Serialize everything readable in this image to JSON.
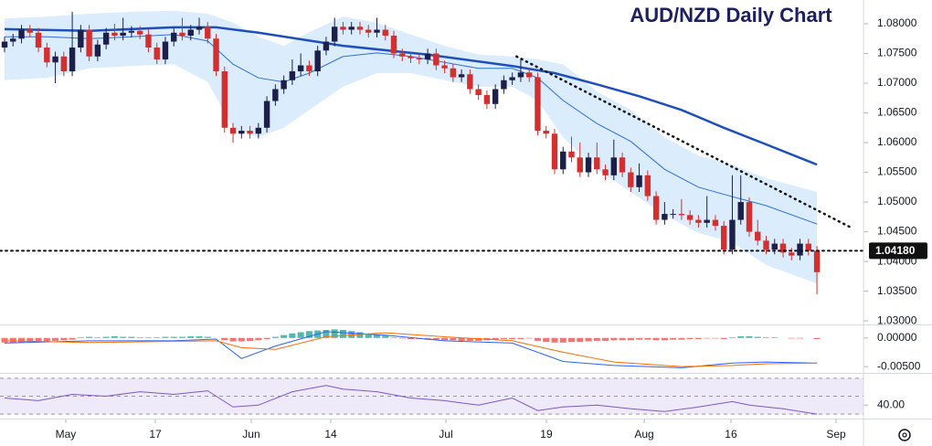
{
  "chart_data": [
    {
      "type": "candlestick",
      "title": "AUD/NZD Daily Chart",
      "open": [
        1.076,
        1.077,
        1.0775,
        1.079,
        1.0785,
        1.076,
        1.0735,
        1.0745,
        1.072,
        1.076,
        1.079,
        1.0745,
        1.0765,
        1.0785,
        1.078,
        1.0785,
        1.0788,
        1.0782,
        1.076,
        1.074,
        1.077,
        1.0785,
        1.078,
        1.079,
        1.0795,
        1.0775,
        1.072,
        1.0625,
        1.0615,
        1.062,
        1.0615,
        1.0625,
        1.067,
        1.069,
        1.0705,
        1.072,
        1.073,
        1.072,
        1.0755,
        1.077,
        1.0795,
        1.079,
        1.0795,
        1.079,
        1.0785,
        1.079,
        1.078,
        1.075,
        1.0745,
        1.0742,
        1.074,
        1.075,
        1.073,
        1.0725,
        1.071,
        1.0715,
        1.069,
        1.068,
        1.0665,
        1.069,
        1.0705,
        1.071,
        1.0718,
        1.071,
        1.062,
        1.0615,
        1.0555,
        1.0585,
        1.0575,
        1.055,
        1.0575,
        1.0555,
        1.0545,
        1.0575,
        1.055,
        1.0525,
        1.0545,
        1.051,
        1.047,
        1.048,
        1.048,
        1.0478,
        1.047,
        1.0465,
        1.047,
        1.046,
        1.042,
        1.047,
        1.05,
        1.045,
        1.0435,
        1.042,
        1.043,
        1.0415,
        1.041,
        1.043,
        1.0418
      ],
      "high": [
        1.0778,
        1.0783,
        1.0798,
        1.0798,
        1.0793,
        1.0768,
        1.0753,
        1.0753,
        1.082,
        1.0798,
        1.0798,
        1.0773,
        1.0793,
        1.08,
        1.081,
        1.0796,
        1.0796,
        1.079,
        1.0768,
        1.0778,
        1.0793,
        1.081,
        1.0798,
        1.081,
        1.0803,
        1.0783,
        1.0728,
        1.0633,
        1.0628,
        1.0628,
        1.0633,
        1.0678,
        1.0698,
        1.0713,
        1.074,
        1.075,
        1.0738,
        1.0763,
        1.0778,
        1.081,
        1.0803,
        1.0803,
        1.0803,
        1.0798,
        1.081,
        1.0798,
        1.0788,
        1.0758,
        1.0753,
        1.075,
        1.0758,
        1.0758,
        1.0738,
        1.0733,
        1.0723,
        1.0723,
        1.0698,
        1.0688,
        1.0698,
        1.0713,
        1.0718,
        1.074,
        1.0726,
        1.0718,
        1.0628,
        1.0623,
        1.0593,
        1.061,
        1.06,
        1.0583,
        1.06,
        1.0563,
        1.0605,
        1.0583,
        1.0558,
        1.0565,
        1.0553,
        1.0518,
        1.05,
        1.0488,
        1.0505,
        1.0486,
        1.0478,
        1.051,
        1.0478,
        1.0468,
        1.0545,
        1.0545,
        1.0508,
        1.047,
        1.0443,
        1.0438,
        1.0438,
        1.0423,
        1.0438,
        1.0438,
        1.0426
      ],
      "low": [
        1.0752,
        1.0762,
        1.0767,
        1.0777,
        1.0752,
        1.0727,
        1.07,
        1.0712,
        1.0712,
        1.0752,
        1.0737,
        1.0737,
        1.0757,
        1.0772,
        1.0772,
        1.0777,
        1.0774,
        1.0752,
        1.0732,
        1.0732,
        1.0762,
        1.0772,
        1.0772,
        1.0782,
        1.0767,
        1.0712,
        1.0617,
        1.06,
        1.0607,
        1.0607,
        1.0607,
        1.0617,
        1.0662,
        1.0682,
        1.0697,
        1.0712,
        1.0712,
        1.0712,
        1.0747,
        1.0762,
        1.0782,
        1.0782,
        1.0782,
        1.0777,
        1.0777,
        1.0772,
        1.0742,
        1.0737,
        1.0734,
        1.0732,
        1.0732,
        1.0722,
        1.0717,
        1.0702,
        1.0702,
        1.0682,
        1.0672,
        1.0657,
        1.0657,
        1.0682,
        1.0697,
        1.0702,
        1.0702,
        1.0612,
        1.0607,
        1.0547,
        1.0547,
        1.0567,
        1.0542,
        1.0542,
        1.0547,
        1.0537,
        1.0537,
        1.0542,
        1.0517,
        1.0517,
        1.0502,
        1.0462,
        1.0462,
        1.0472,
        1.047,
        1.0462,
        1.0457,
        1.0457,
        1.0452,
        1.0412,
        1.0412,
        1.0462,
        1.0442,
        1.0427,
        1.0412,
        1.0412,
        1.0407,
        1.0402,
        1.0402,
        1.041,
        1.0345
      ],
      "close": [
        1.077,
        1.0775,
        1.079,
        1.0785,
        1.076,
        1.0735,
        1.0745,
        1.072,
        1.076,
        1.079,
        1.0745,
        1.0765,
        1.0785,
        1.078,
        1.0785,
        1.0788,
        1.0782,
        1.076,
        1.074,
        1.077,
        1.0785,
        1.078,
        1.079,
        1.0795,
        1.0775,
        1.072,
        1.0625,
        1.0615,
        1.062,
        1.0615,
        1.0625,
        1.067,
        1.069,
        1.0705,
        1.072,
        1.073,
        1.072,
        1.0755,
        1.077,
        1.0795,
        1.079,
        1.0795,
        1.079,
        1.0785,
        1.079,
        1.078,
        1.075,
        1.0745,
        1.0742,
        1.074,
        1.075,
        1.073,
        1.0725,
        1.071,
        1.0715,
        1.069,
        1.068,
        1.0665,
        1.069,
        1.0705,
        1.071,
        1.0718,
        1.071,
        1.062,
        1.0615,
        1.0555,
        1.0585,
        1.0575,
        1.055,
        1.0575,
        1.0555,
        1.0545,
        1.0575,
        1.055,
        1.0525,
        1.0545,
        1.051,
        1.047,
        1.048,
        1.048,
        1.0478,
        1.047,
        1.0465,
        1.047,
        1.046,
        1.042,
        1.047,
        1.05,
        1.045,
        1.0435,
        1.042,
        1.043,
        1.0415,
        1.041,
        1.043,
        1.0418,
        1.0382
      ],
      "up_color": "#1c1f4a",
      "down_color": "#d32f2f",
      "xlim": [
        -0.54,
        101.5
      ],
      "ylim": [
        1.0294,
        1.084
      ],
      "yticks": [
        {
          "value": 1.08,
          "label": "1.08000"
        },
        {
          "value": 1.075,
          "label": "1.07500"
        },
        {
          "value": 1.07,
          "label": "1.07000"
        },
        {
          "value": 1.065,
          "label": "1.06500"
        },
        {
          "value": 1.06,
          "label": "1.06000"
        },
        {
          "value": 1.055,
          "label": "1.05500"
        },
        {
          "value": 1.05,
          "label": "1.05000"
        },
        {
          "value": 1.045,
          "label": "1.04500"
        },
        {
          "value": 1.04,
          "label": "1.04000"
        },
        {
          "value": 1.035,
          "label": "1.03500"
        },
        {
          "value": 1.03,
          "label": "1.03000"
        }
      ],
      "band": {
        "color": "#cfe6fb",
        "x": [
          0,
          5,
          10,
          15,
          20,
          24,
          27,
          30,
          33,
          36,
          40,
          44,
          48,
          52,
          56,
          60,
          63,
          66,
          70,
          74,
          78,
          82,
          86,
          90,
          96
        ],
        "upper": [
          1.0809,
          1.0812,
          1.0817,
          1.082,
          1.0822,
          1.0817,
          1.0802,
          1.0778,
          1.0763,
          1.0786,
          1.0812,
          1.0802,
          1.0782,
          1.0763,
          1.0748,
          1.0745,
          1.074,
          1.0732,
          1.0686,
          1.0655,
          1.0609,
          1.0578,
          1.0563,
          1.054,
          1.0517
        ],
        "lower": [
          1.0705,
          1.0709,
          1.0725,
          1.0729,
          1.0732,
          1.0702,
          1.0625,
          1.0609,
          1.0625,
          1.0655,
          1.0694,
          1.0717,
          1.0717,
          1.0705,
          1.0694,
          1.0694,
          1.0671,
          1.0609,
          1.0555,
          1.0517,
          1.0478,
          1.0448,
          1.0432,
          1.0394,
          1.0363
        ]
      },
      "series": [
        {
          "color": "#2f6fd6",
          "x": [
            0,
            5,
            10,
            15,
            20,
            24,
            27,
            30,
            33,
            36,
            40,
            44,
            48,
            52,
            56,
            60,
            63,
            66,
            70,
            74,
            78,
            82,
            86,
            90,
            96
          ],
          "values": [
            1.0778,
            1.0778,
            1.0775,
            1.0778,
            1.0782,
            1.0771,
            1.0732,
            1.0709,
            1.0702,
            1.0717,
            1.0745,
            1.0751,
            1.0745,
            1.0735,
            1.0725,
            1.0725,
            1.0709,
            1.0671,
            1.0632,
            1.0602,
            1.0555,
            1.0525,
            1.0509,
            1.0494,
            1.0463
          ]
        },
        {
          "color": "#1f4fb8",
          "x": [
            0,
            10,
            20,
            25,
            30,
            40,
            50,
            60,
            65,
            70,
            75,
            80,
            85,
            90,
            96
          ],
          "values": [
            1.0791,
            1.0788,
            1.0794,
            1.0794,
            1.0785,
            1.0763,
            1.0748,
            1.0729,
            1.0717,
            1.0698,
            1.0678,
            1.0655,
            1.0625,
            1.0597,
            1.0563
          ]
        }
      ],
      "trendline": {
        "color": "#111111",
        "x": [
          60.5,
          99.9
        ],
        "values": [
          1.0745,
          1.0458
        ]
      },
      "price_line": {
        "value": 1.0418,
        "label": "1.04180",
        "color": "#111111"
      }
    },
    {
      "type": "macd",
      "values": [
        -0.0008,
        -0.0009,
        -0.0008,
        -0.0007,
        -0.0006,
        -0.0006,
        -0.0005,
        -0.0004,
        -0.0003,
        0.0001,
        0.0002,
        0.0001,
        0.0002,
        0.0003,
        0.0002,
        0.0002,
        0.0001,
        0.0001,
        0.0001,
        0.0002,
        0.0002,
        0.0002,
        0.0003,
        0.0003,
        0.0002,
        0.0,
        -0.0004,
        -0.0006,
        -0.0006,
        -0.0005,
        -0.0004,
        -0.0002,
        0.0002,
        0.0005,
        0.0008,
        0.001,
        0.0012,
        0.0013,
        0.0014,
        0.0015,
        0.0014,
        0.0012,
        0.001,
        0.0008,
        0.0006,
        0.0004,
        0.0001,
        -0.0001,
        -0.0002,
        -0.0002,
        -0.0003,
        -0.0003,
        -0.0004,
        -0.0004,
        -0.0005,
        -0.0005,
        -0.0005,
        -0.0004,
        -0.0003,
        -0.0002,
        -0.0002,
        -0.0002,
        -0.0001,
        -0.0005,
        -0.0007,
        -0.0008,
        -0.0008,
        -0.0007,
        -0.0007,
        -0.0006,
        -0.0005,
        -0.0005,
        -0.0004,
        -0.0004,
        -0.0004,
        -0.0003,
        -0.0003,
        -0.0004,
        -0.0004,
        -0.0003,
        -0.0003,
        -0.0002,
        -0.0002,
        -0.0001,
        -0.0001,
        -0.0002,
        0.0001,
        0.0003,
        0.0003,
        0.0002,
        0.0001,
        0.0001,
        0.0,
        -0.0001,
        -0.0001,
        0.0,
        -0.0002
      ],
      "pos_color": "#26a69a",
      "neg_color": "#ef5350",
      "series": [
        {
          "color": "#2962ff",
          "x": [
            0,
            10,
            20,
            25,
            28,
            32,
            38,
            45,
            52,
            60,
            66,
            72,
            80,
            86,
            90,
            96
          ],
          "values": [
            -0.0009,
            -0.0005,
            -0.0005,
            -0.0002,
            -0.0036,
            -0.0014,
            0.0011,
            0.0005,
            -0.0005,
            -0.0009,
            -0.0041,
            -0.0048,
            -0.0052,
            -0.0044,
            -0.0042,
            -0.0044
          ]
        },
        {
          "color": "#ff6d00",
          "x": [
            0,
            10,
            20,
            25,
            28,
            32,
            38,
            45,
            52,
            60,
            66,
            72,
            80,
            86,
            90,
            96
          ],
          "values": [
            -0.0005,
            -0.0008,
            -0.0006,
            -0.0005,
            -0.0017,
            -0.002,
            0.0002,
            0.0009,
            0.0002,
            -0.0005,
            -0.0025,
            -0.0042,
            -0.005,
            -0.0048,
            -0.0045,
            -0.0044
          ]
        }
      ],
      "xlim": [
        -0.54,
        101.5
      ],
      "ylim": [
        -0.0061,
        0.0022
      ],
      "yticks": [
        {
          "value": 0,
          "label": "0.00000"
        },
        {
          "value": -0.005,
          "label": "-0.00500"
        }
      ]
    },
    {
      "type": "line",
      "series": [
        {
          "color": "#7e57c2",
          "x": [
            0,
            4,
            8,
            12,
            16,
            20,
            24,
            27,
            30,
            34,
            38,
            40,
            44,
            48,
            52,
            56,
            60,
            63,
            66,
            70,
            74,
            78,
            82,
            86,
            88,
            92,
            96
          ],
          "values": [
            48,
            45,
            52,
            50,
            55,
            52,
            56,
            38,
            40,
            55,
            62,
            58,
            55,
            48,
            45,
            40,
            48,
            34,
            38,
            40,
            36,
            33,
            38,
            44,
            40,
            36,
            30
          ]
        }
      ],
      "levels": [
        30,
        50,
        70
      ],
      "level_fill": "#efeafa",
      "xlim": [
        -0.54,
        101.5
      ],
      "ylim": [
        25,
        75
      ],
      "yticks": [
        {
          "value": 40,
          "label": "40.00"
        }
      ],
      "xticks": [
        {
          "value": 7.23,
          "label": "May"
        },
        {
          "value": 17.82,
          "label": "17"
        },
        {
          "value": 29.15,
          "label": "Jun"
        },
        {
          "value": 38.55,
          "label": "14"
        },
        {
          "value": 52.15,
          "label": "Jul"
        },
        {
          "value": 64.03,
          "label": "19"
        },
        {
          "value": 75.59,
          "label": "Aug"
        },
        {
          "value": 85.84,
          "label": "16"
        },
        {
          "value": 98.26,
          "label": "Sep"
        }
      ]
    }
  ]
}
